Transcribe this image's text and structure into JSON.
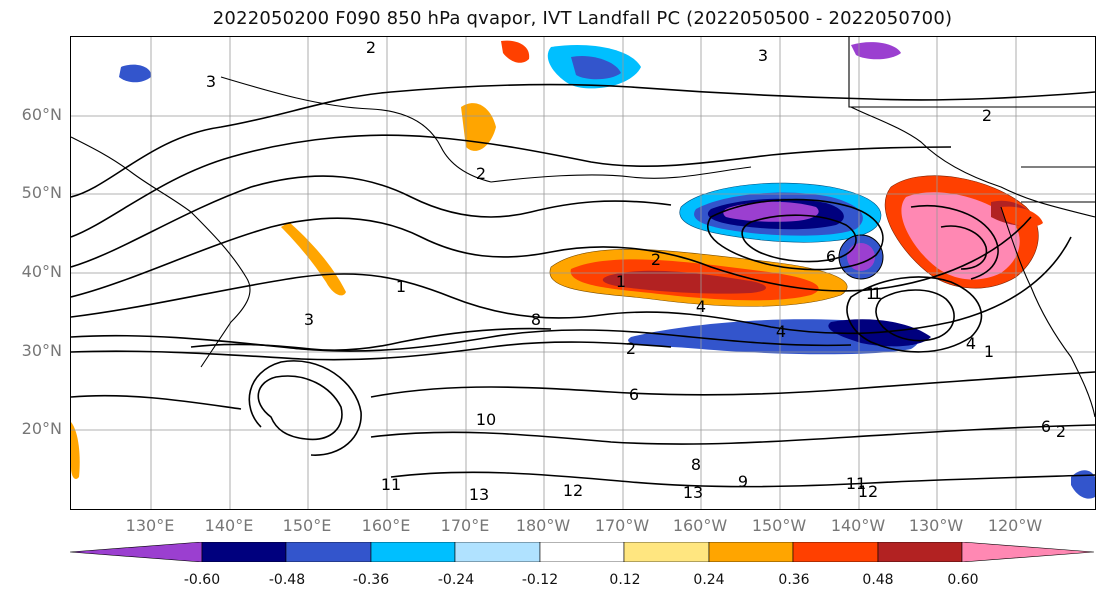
{
  "title": "2022050200 F090 850 hPa qvapor, IVT Landfall PC (2022050500 - 2022050700)",
  "map": {
    "lat_ticks": [
      "60°N",
      "50°N",
      "40°N",
      "30°N",
      "20°N"
    ],
    "lon_ticks": [
      "130°E",
      "140°E",
      "150°E",
      "160°E",
      "170°E",
      "180°W",
      "170°W",
      "160°W",
      "150°W",
      "140°W",
      "130°W",
      "120°W"
    ],
    "contour_labels": [
      "2",
      "3",
      "2",
      "1",
      "2",
      "1",
      "3",
      "8",
      "4",
      "4",
      "2",
      "1",
      "6",
      "4",
      "6",
      "10",
      "11",
      "13",
      "12",
      "13",
      "12",
      "11",
      "9",
      "8",
      "3",
      "2",
      "1",
      "2",
      "6",
      "1"
    ]
  },
  "colorbar": {
    "ticks": [
      "-0.60",
      "-0.48",
      "-0.36",
      "-0.24",
      "-0.12",
      "0.12",
      "0.24",
      "0.36",
      "0.48",
      "0.60"
    ],
    "colors": [
      "#9b3fd0",
      "#00007e",
      "#3355cc",
      "#00bfff",
      "#b0e2ff",
      "#ffffff",
      "#ffe680",
      "#ffa500",
      "#ff4000",
      "#b22222",
      "#ff88b3"
    ]
  }
}
